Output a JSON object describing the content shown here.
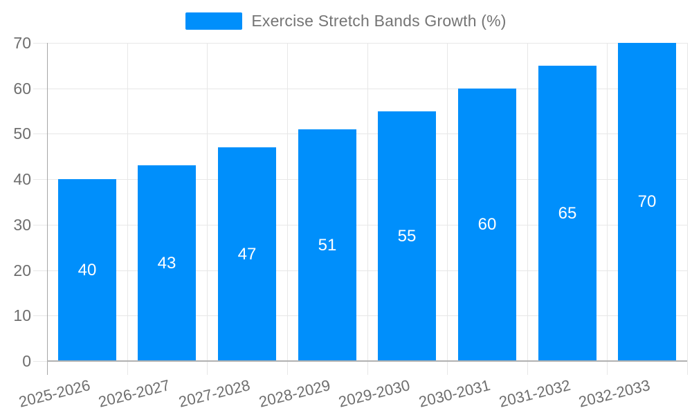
{
  "chart_data": {
    "type": "bar",
    "title": "Exercise Stretch Bands Growth (%)",
    "categories": [
      "2025-2026",
      "2026-2027",
      "2027-2028",
      "2028-2029",
      "2029-2030",
      "2030-2031",
      "2031-2032",
      "2032-2033"
    ],
    "values": [
      40,
      43,
      47,
      51,
      55,
      60,
      65,
      70
    ],
    "xlabel": "",
    "ylabel": "",
    "ylim": [
      0,
      70
    ],
    "yticks": [
      0,
      10,
      20,
      30,
      40,
      50,
      60,
      70
    ],
    "grid": true,
    "bar_labels_visible": true,
    "legend": {
      "position": "top",
      "label": "Exercise Stretch Bands Growth (%)",
      "marker": "blue-rect-swatch"
    },
    "colors": {
      "bar": "#008FFB",
      "bar_label_text": "#ffffff",
      "grid_line": "#e7e7e7",
      "x_axis_line": "#b0b0b0",
      "y_axis_line": "#a6a6a6",
      "tick_label": "#6e6e6e",
      "legend_text": "#757575",
      "background": "#ffffff"
    }
  }
}
